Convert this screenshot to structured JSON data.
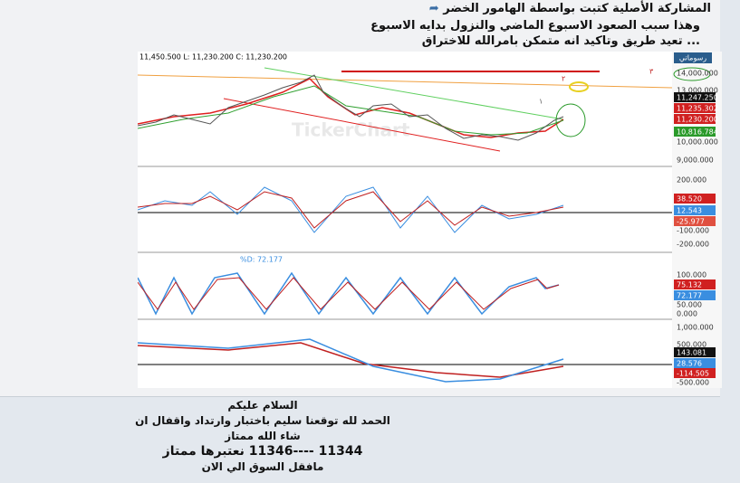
{
  "quote": {
    "header": "المشاركة الأصلية كتبت بواسطة الهامور الخضر",
    "lines": [
      "وهذا سبب الصعود الاسبوع الماضي والنزول بدايه الاسبوع",
      "... تعيد طريق وتاكيد انه متمكن بامرالله للاختراق"
    ]
  },
  "chart_image": {
    "ohlc_label": "11,450.500  L: 11,230.200  C: 11,230.200",
    "watermark": "TickerChart",
    "drawings_button": "رسوماتي",
    "annotations": [
      "٣",
      "٢",
      "١"
    ],
    "price_axis": [
      "14,000.000",
      "13,000.000",
      "11,247.250",
      "11,235.302",
      "11,230.200",
      "10,816.784",
      "10,000.000",
      "9,000.000"
    ],
    "panels": [
      {
        "axis": [
          "200.000",
          "38.520",
          "12.543",
          "-25.977",
          "-100.000",
          "-200.000"
        ]
      },
      {
        "header": "%D: 72.177",
        "axis": [
          "100.000",
          "75.132",
          "72.177",
          "50.000",
          "0.000"
        ]
      },
      {
        "axis": [
          "1,000.000",
          "500.000",
          "143.081",
          "28.576",
          "-114.505",
          "-500.000"
        ]
      }
    ]
  },
  "post": {
    "lines": [
      "السلام عليكم",
      "الحمد لله توقعنا سليم باختبار وارتداد واقفال ان شاء الله ممتاز",
      "11344 ----11346 نعتبرها ممتاز",
      "مافقل السوق الي الان"
    ]
  }
}
